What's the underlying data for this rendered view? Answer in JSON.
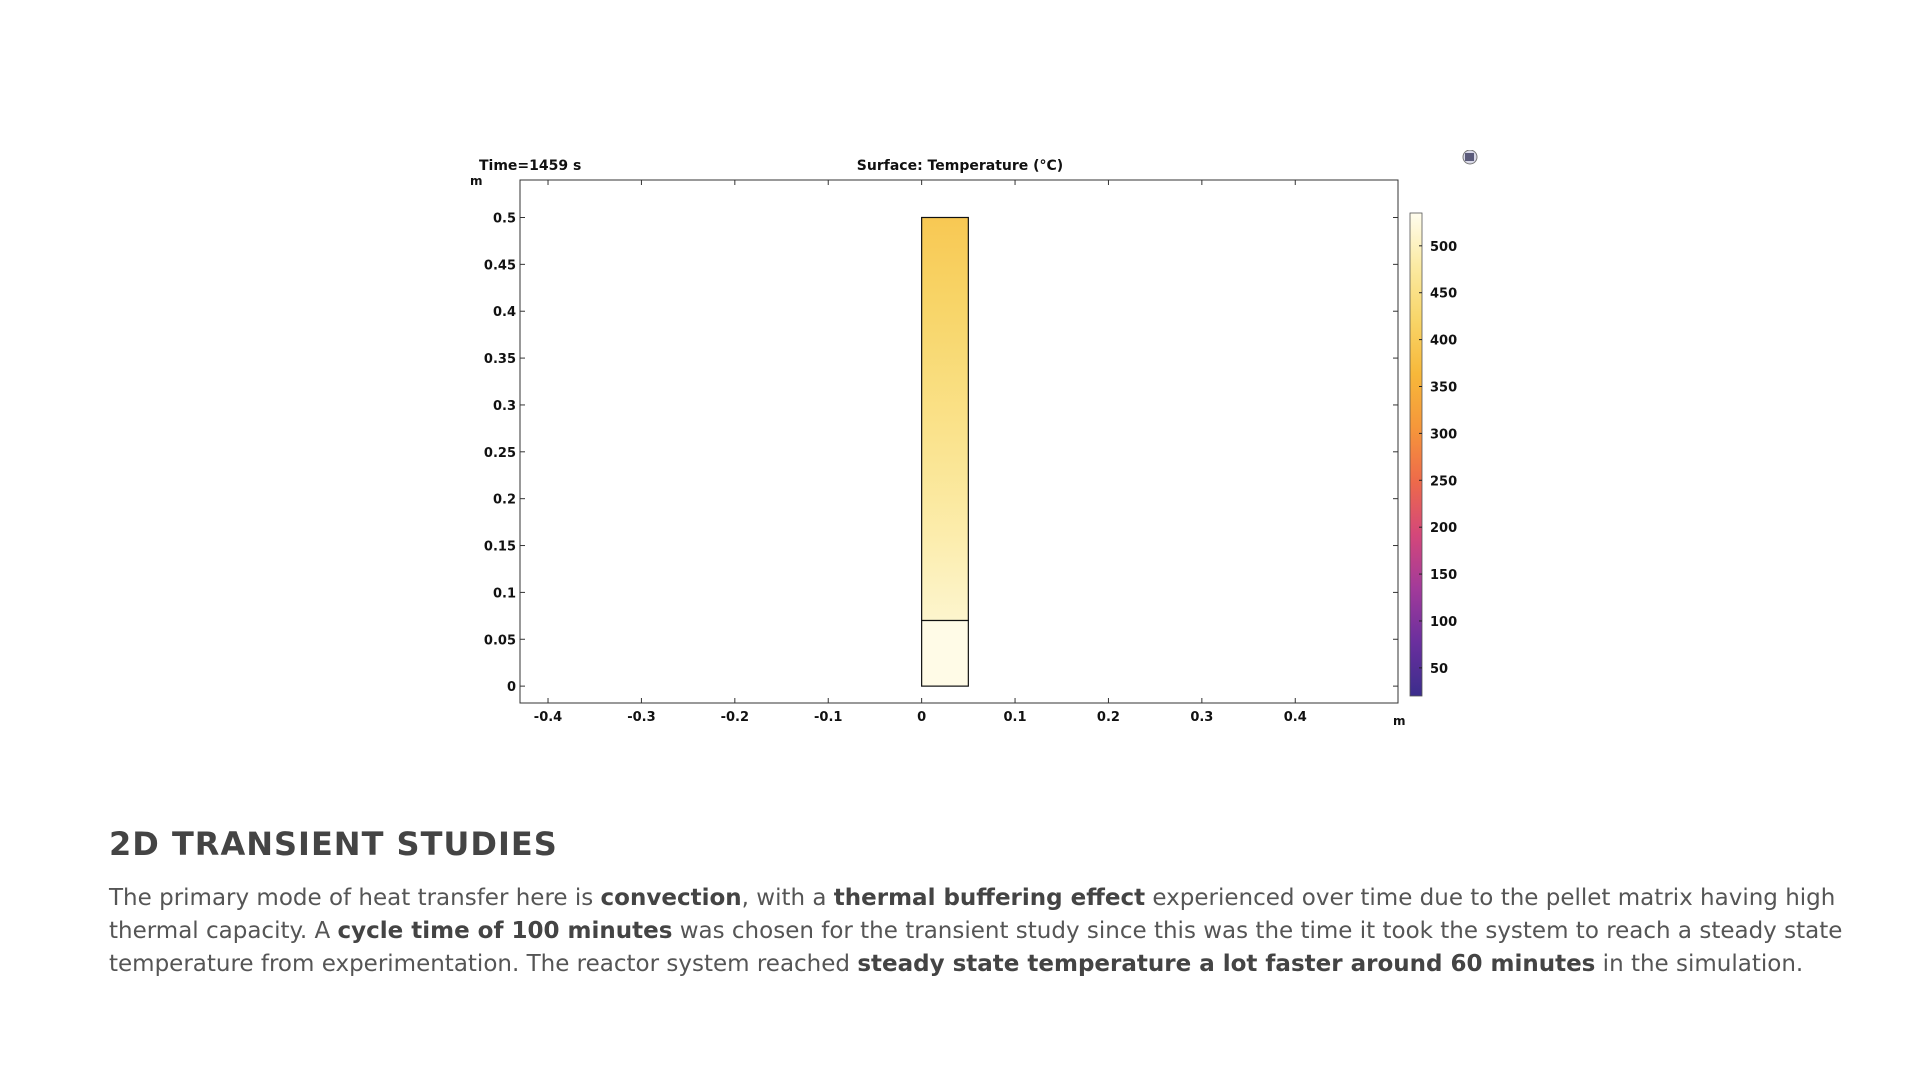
{
  "chart_data": {
    "type": "heatmap",
    "title_left": "Time=1459 s",
    "title_center": "Surface: Temperature (°C)",
    "y_unit": "m",
    "x_unit": "m",
    "xlim": [
      -0.43,
      0.51
    ],
    "ylim": [
      -0.018,
      0.54
    ],
    "x_ticks": [
      -0.4,
      -0.3,
      -0.2,
      -0.1,
      0,
      0.1,
      0.2,
      0.3,
      0.4
    ],
    "x_tick_labels": [
      "-0.4",
      "-0.3",
      "-0.2",
      "-0.1",
      "0",
      "0.1",
      "0.2",
      "0.3",
      "0.4"
    ],
    "y_ticks": [
      0,
      0.05,
      0.1,
      0.15,
      0.2,
      0.25,
      0.3,
      0.35,
      0.4,
      0.45,
      0.5
    ],
    "y_tick_labels": [
      "0",
      "0.05",
      "0.1",
      "0.15",
      "0.2",
      "0.25",
      "0.3",
      "0.35",
      "0.4",
      "0.45",
      "0.5"
    ],
    "domains": [
      {
        "x0": 0,
        "x1": 0.05,
        "y0": 0.07,
        "y1": 0.5,
        "temp_bottom": 510,
        "temp_top": 395
      },
      {
        "x0": 0,
        "x1": 0.05,
        "y0": 0,
        "y1": 0.07,
        "temp_bottom": 530,
        "temp_top": 530
      }
    ],
    "colorbar": {
      "range": [
        20,
        535
      ],
      "ticks": [
        50,
        100,
        150,
        200,
        250,
        300,
        350,
        400,
        450,
        500
      ],
      "tick_labels": [
        "50",
        "100",
        "150",
        "200",
        "250",
        "300",
        "350",
        "400",
        "450",
        "500"
      ],
      "colors": [
        "#3b2d8c",
        "#6a2f9e",
        "#a23a9a",
        "#d4477a",
        "#ee6a4a",
        "#f6973a",
        "#f7b83a",
        "#f8d568",
        "#fbeaa2",
        "#fffdee"
      ]
    }
  },
  "section": {
    "title": "2D TRANSIENT STUDIES",
    "paragraph": [
      {
        "text": "The primary mode of heat transfer here is "
      },
      {
        "text": "convection",
        "bold": true
      },
      {
        "text": ", with a "
      },
      {
        "text": "thermal buffering effect",
        "bold": true
      },
      {
        "text": " experienced over time due to the pellet matrix having high thermal capacity. A "
      },
      {
        "text": "cycle time of 100 minutes",
        "bold": true
      },
      {
        "text": " was chosen for the transient study since this was the time it took the system to reach a steady state temperature from experimentation. The reactor system reached "
      },
      {
        "text": "steady state temperature a lot faster around 60 minutes",
        "bold": true
      },
      {
        "text": " in the simulation."
      }
    ]
  }
}
